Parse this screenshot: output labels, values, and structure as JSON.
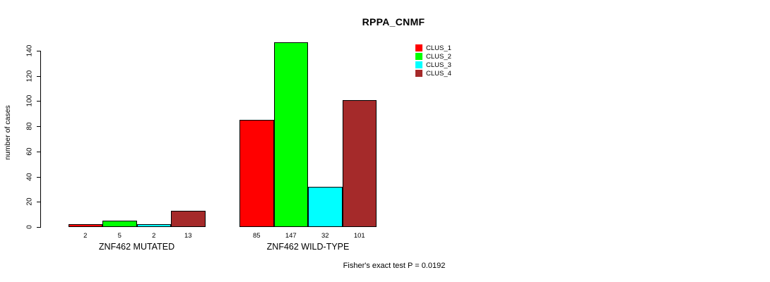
{
  "title": "RPPA_CNMF",
  "y_axis_label": "number of cases",
  "footer": "Fisher's exact test P = 0.0192",
  "legend": {
    "items": [
      {
        "label": "CLUS_1",
        "color": "#ff0000"
      },
      {
        "label": "CLUS_2",
        "color": "#00ff00"
      },
      {
        "label": "CLUS_3",
        "color": "#00ffff"
      },
      {
        "label": "CLUS_4",
        "color": "#a52a2a"
      }
    ]
  },
  "chart_data": {
    "type": "bar",
    "title": "RPPA_CNMF",
    "xlabel": "",
    "ylabel": "number of cases",
    "ylim": [
      0,
      140
    ],
    "yticks": [
      0,
      20,
      40,
      60,
      80,
      100,
      120,
      140
    ],
    "grid": false,
    "legend_position": "top-right",
    "categories": [
      "ZNF462 MUTATED",
      "ZNF462 WILD-TYPE"
    ],
    "series": [
      {
        "name": "CLUS_1",
        "color": "#ff0000",
        "values": [
          2,
          85
        ]
      },
      {
        "name": "CLUS_2",
        "color": "#00ff00",
        "values": [
          5,
          147
        ]
      },
      {
        "name": "CLUS_3",
        "color": "#00ffff",
        "values": [
          2,
          32
        ]
      },
      {
        "name": "CLUS_4",
        "color": "#a52a2a",
        "values": [
          13,
          101
        ]
      }
    ],
    "bar_value_labels": [
      [
        2,
        5,
        2,
        13
      ],
      [
        85,
        147,
        32,
        101
      ]
    ],
    "annotation": "Fisher's exact test P = 0.0192"
  }
}
